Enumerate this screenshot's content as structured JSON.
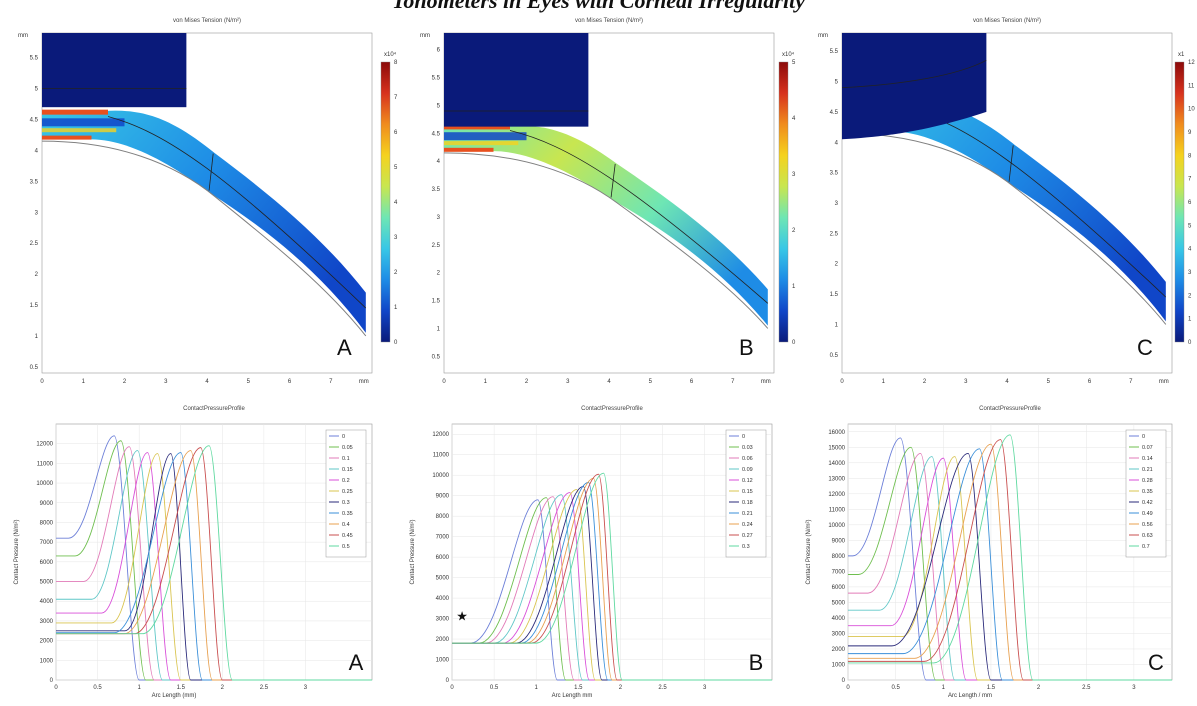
{
  "page_title": "Tonometers in Eyes with Corneal Irregularity",
  "colormap": [
    "#0a1a7a",
    "#1046c8",
    "#1e8ce6",
    "#38c7e6",
    "#6ee6b4",
    "#c8e650",
    "#f5d21e",
    "#f08c1e",
    "#d7321e",
    "#8c0a0a"
  ],
  "colorbar_labels": [
    [
      "0",
      "1",
      "2",
      "3",
      "4",
      "5",
      "6",
      "7",
      "8"
    ],
    [
      "0",
      "1",
      "2",
      "3",
      "4",
      "5"
    ],
    [
      "0",
      "1",
      "2",
      "3",
      "4",
      "5",
      "6",
      "7",
      "8",
      "9",
      "10",
      "11",
      "12"
    ]
  ],
  "chart_data": [
    {
      "type": "heatmap",
      "panel": "A",
      "title": "von Mises Tension (N/m²)",
      "colorbar_exponent": "x10⁴",
      "x_ticks": [
        "0",
        "1",
        "2",
        "3",
        "4",
        "5",
        "6",
        "7",
        "mm"
      ],
      "y_ticks": [
        "0.5",
        "1",
        "1.5",
        "2",
        "2.5",
        "3",
        "3.5",
        "4",
        "4.5",
        "5",
        "5.5"
      ],
      "y_unit": "mm",
      "xlim": [
        0,
        8
      ],
      "ylim": [
        0.4,
        5.9
      ]
    },
    {
      "type": "heatmap",
      "panel": "B",
      "title": "von Mises Tension (N/m²)",
      "colorbar_exponent": "x10⁴",
      "x_ticks": [
        "0",
        "1",
        "2",
        "3",
        "4",
        "5",
        "6",
        "7",
        "mm"
      ],
      "y_ticks": [
        "0.5",
        "1",
        "1.5",
        "2",
        "2.5",
        "3",
        "3.5",
        "4",
        "4.5",
        "5",
        "5.5",
        "6"
      ],
      "y_unit": "mm",
      "xlim": [
        0,
        8
      ],
      "ylim": [
        0.2,
        6.3
      ]
    },
    {
      "type": "heatmap",
      "panel": "C",
      "title": "von Mises Tension (N/m²)",
      "colorbar_exponent": "x1",
      "x_ticks": [
        "0",
        "1",
        "2",
        "3",
        "4",
        "5",
        "6",
        "7",
        "mm"
      ],
      "y_ticks": [
        "0.5",
        "1",
        "1.5",
        "2",
        "2.5",
        "3",
        "3.5",
        "4",
        "4.5",
        "5",
        "5.5"
      ],
      "y_unit": "mm",
      "xlim": [
        0,
        8
      ],
      "ylim": [
        0.2,
        5.8
      ]
    },
    {
      "type": "line",
      "panel": "A",
      "title": "ContactPressureProfile",
      "xlabel": "Arc Length (mm)",
      "ylabel": "Contact Pressure (N/m²)",
      "xlim": [
        0,
        3.8
      ],
      "ylim": [
        0,
        13000
      ],
      "x_ticks": [
        "0",
        "0.5",
        "1",
        "1.5",
        "2",
        "2.5",
        "3"
      ],
      "y_ticks": [
        "0",
        "1000",
        "2000",
        "3000",
        "4000",
        "5000",
        "6000",
        "7000",
        "8000",
        "9000",
        "10000",
        "11000",
        "12000"
      ],
      "legend_location": "top-right",
      "series_names": [
        "0",
        "0.05",
        "0.1",
        "0.15",
        "0.2",
        "0.25",
        "0.3",
        "0.35",
        "0.4",
        "0.45",
        "0.5"
      ],
      "series": [
        {
          "name": "0",
          "start": 7200,
          "peak_x": 0.7,
          "peak_y": 12400,
          "end_x": 1.0
        },
        {
          "name": "0.05",
          "start": 6300,
          "peak_x": 0.78,
          "peak_y": 12150,
          "end_x": 1.08
        },
        {
          "name": "0.1",
          "start": 5000,
          "peak_x": 0.88,
          "peak_y": 11850,
          "end_x": 1.18
        },
        {
          "name": "0.15",
          "start": 4100,
          "peak_x": 0.98,
          "peak_y": 11650,
          "end_x": 1.28
        },
        {
          "name": "0.2",
          "start": 3400,
          "peak_x": 1.1,
          "peak_y": 11550,
          "end_x": 1.38
        },
        {
          "name": "0.25",
          "start": 2900,
          "peak_x": 1.22,
          "peak_y": 11500,
          "end_x": 1.5
        },
        {
          "name": "0.3",
          "start": 2500,
          "peak_x": 1.38,
          "peak_y": 11500,
          "end_x": 1.62
        },
        {
          "name": "0.35",
          "start": 2400,
          "peak_x": 1.5,
          "peak_y": 11550,
          "end_x": 1.76
        },
        {
          "name": "0.4",
          "start": 2350,
          "peak_x": 1.62,
          "peak_y": 11650,
          "end_x": 1.88
        },
        {
          "name": "0.45",
          "start": 2350,
          "peak_x": 1.74,
          "peak_y": 11800,
          "end_x": 2.0
        },
        {
          "name": "0.5",
          "start": 2350,
          "peak_x": 1.84,
          "peak_y": 11900,
          "end_x": 2.12
        }
      ]
    },
    {
      "type": "line",
      "panel": "B",
      "title": "ContactPressureProfile",
      "xlabel": "Arc Length mm",
      "ylabel": "Contact Pressure (N/m²)",
      "xlim": [
        0,
        3.8
      ],
      "ylim": [
        0,
        12500
      ],
      "x_ticks": [
        "0",
        "0.5",
        "1",
        "1.5",
        "2",
        "2.5",
        "3"
      ],
      "y_ticks": [
        "0",
        "1000",
        "2000",
        "3000",
        "4000",
        "5000",
        "6000",
        "7000",
        "8000",
        "9000",
        "10000",
        "11000",
        "12000"
      ],
      "legend_location": "top-right",
      "annotation": "★",
      "series_names": [
        "0",
        "0.03",
        "0.06",
        "0.09",
        "0.12",
        "0.15",
        "0.18",
        "0.21",
        "0.24",
        "0.27",
        "0.3"
      ],
      "series": [
        {
          "name": "0",
          "start": 1800,
          "peak_x": 1.02,
          "peak_y": 8800,
          "end_x": 1.25
        },
        {
          "name": "0.03",
          "start": 1800,
          "peak_x": 1.12,
          "peak_y": 8900,
          "end_x": 1.35
        },
        {
          "name": "0.06",
          "start": 1800,
          "peak_x": 1.2,
          "peak_y": 8950,
          "end_x": 1.45
        },
        {
          "name": "0.09",
          "start": 1800,
          "peak_x": 1.3,
          "peak_y": 9050,
          "end_x": 1.55
        },
        {
          "name": "0.12",
          "start": 1800,
          "peak_x": 1.4,
          "peak_y": 9150,
          "end_x": 1.63
        },
        {
          "name": "0.15",
          "start": 1800,
          "peak_x": 1.48,
          "peak_y": 9300,
          "end_x": 1.7
        },
        {
          "name": "0.18",
          "start": 1800,
          "peak_x": 1.56,
          "peak_y": 9450,
          "end_x": 1.78
        },
        {
          "name": "0.21",
          "start": 1800,
          "peak_x": 1.62,
          "peak_y": 9650,
          "end_x": 1.85
        },
        {
          "name": "0.24",
          "start": 1800,
          "peak_x": 1.68,
          "peak_y": 9850,
          "end_x": 1.9
        },
        {
          "name": "0.27",
          "start": 1800,
          "peak_x": 1.74,
          "peak_y": 10050,
          "end_x": 1.96
        },
        {
          "name": "0.3",
          "start": 1800,
          "peak_x": 1.8,
          "peak_y": 10100,
          "end_x": 2.02
        }
      ]
    },
    {
      "type": "line",
      "panel": "C",
      "title": "ContactPressureProfile",
      "xlabel": "Arc Length / mm",
      "ylabel": "Contact Pressure (N/m²)",
      "xlim": [
        0,
        3.4
      ],
      "ylim": [
        0,
        16500
      ],
      "x_ticks": [
        "0",
        "0.5",
        "1",
        "1.5",
        "2",
        "2.5",
        "3"
      ],
      "y_ticks": [
        "0",
        "1000",
        "2000",
        "3000",
        "4000",
        "5000",
        "6000",
        "7000",
        "8000",
        "9000",
        "10000",
        "11000",
        "12000",
        "13000",
        "14000",
        "15000",
        "16000"
      ],
      "legend_location": "top-right",
      "series_names": [
        "0",
        "0.07",
        "0.14",
        "0.21",
        "0.28",
        "0.35",
        "0.42",
        "0.49",
        "0.56",
        "0.63",
        "0.7"
      ],
      "series": [
        {
          "name": "0",
          "start": 8000,
          "peak_x": 0.55,
          "peak_y": 15600,
          "end_x": 0.82
        },
        {
          "name": "0.07",
          "start": 6800,
          "peak_x": 0.66,
          "peak_y": 15000,
          "end_x": 0.92
        },
        {
          "name": "0.14",
          "start": 5600,
          "peak_x": 0.76,
          "peak_y": 14600,
          "end_x": 1.02
        },
        {
          "name": "0.21",
          "start": 4500,
          "peak_x": 0.88,
          "peak_y": 14400,
          "end_x": 1.12
        },
        {
          "name": "0.28",
          "start": 3500,
          "peak_x": 1.0,
          "peak_y": 14300,
          "end_x": 1.24
        },
        {
          "name": "0.35",
          "start": 2800,
          "peak_x": 1.12,
          "peak_y": 14400,
          "end_x": 1.36
        },
        {
          "name": "0.42",
          "start": 2200,
          "peak_x": 1.26,
          "peak_y": 14600,
          "end_x": 1.5
        },
        {
          "name": "0.49",
          "start": 1700,
          "peak_x": 1.38,
          "peak_y": 14900,
          "end_x": 1.62
        },
        {
          "name": "0.56",
          "start": 1400,
          "peak_x": 1.5,
          "peak_y": 15200,
          "end_x": 1.74
        },
        {
          "name": "0.63",
          "start": 1200,
          "peak_x": 1.6,
          "peak_y": 15500,
          "end_x": 1.84
        },
        {
          "name": "0.7",
          "start": 1100,
          "peak_x": 1.7,
          "peak_y": 15800,
          "end_x": 1.94
        }
      ]
    }
  ],
  "series_colors": [
    "#6c7fd8",
    "#6fbf4f",
    "#e27bb8",
    "#5fc7c7",
    "#d94fd9",
    "#d9c44f",
    "#2a2a7a",
    "#3a8fd9",
    "#e8a04f",
    "#c94f4f",
    "#5fd9a0"
  ]
}
